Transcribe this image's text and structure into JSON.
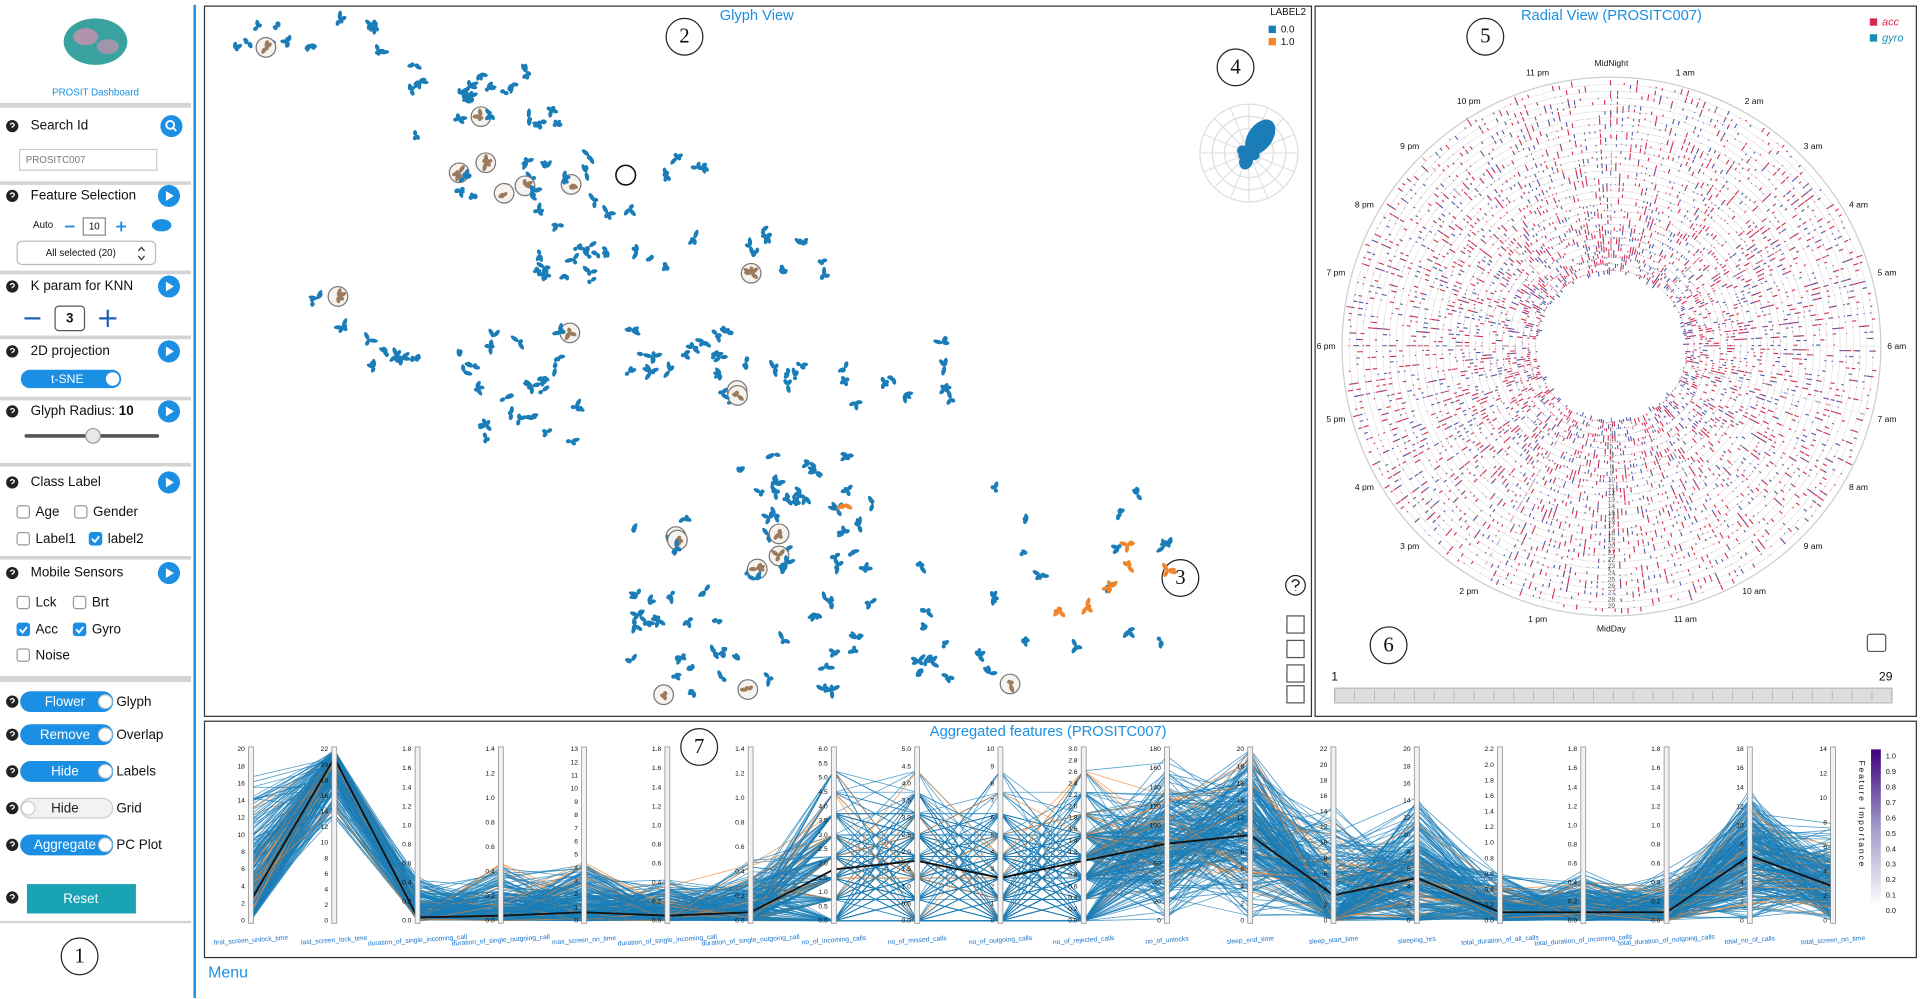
{
  "sidebar": {
    "app_title": "PROSIT Dashboard",
    "search": {
      "label": "Search Id",
      "placeholder": "PROSITC007"
    },
    "feature_selection": {
      "label": "Feature Selection",
      "mode": "Auto",
      "count": 10,
      "dropdown": "All selected (20)"
    },
    "knn": {
      "label": "K param for KNN",
      "k": 3
    },
    "projection": {
      "label": "2D projection",
      "method": "t-SNE"
    },
    "glyph_radius": {
      "label": "Glyph Radius:",
      "value": 10
    },
    "class_label": {
      "label": "Class Label",
      "options": [
        {
          "label": "Age",
          "checked": false
        },
        {
          "label": "Gender",
          "checked": false
        },
        {
          "label": "Label1",
          "checked": false
        },
        {
          "label": "label2",
          "checked": true
        }
      ]
    },
    "sensors": {
      "label": "Mobile Sensors",
      "options": [
        {
          "label": "Lck",
          "checked": false
        },
        {
          "label": "Brt",
          "checked": false
        },
        {
          "label": "Acc",
          "checked": true
        },
        {
          "label": "Gyro",
          "checked": true
        },
        {
          "label": "Noise",
          "checked": false
        }
      ]
    },
    "toggles": [
      {
        "button": "Flower",
        "label": "Glyph",
        "on": true
      },
      {
        "button": "Remove",
        "label": "Overlap",
        "on": true
      },
      {
        "button": "Hide",
        "label": "Labels",
        "on": true
      },
      {
        "button": "Hide",
        "label": "Grid",
        "on": false
      },
      {
        "button": "Aggregate",
        "label": "PC Plot",
        "on": true
      }
    ],
    "reset": "Reset"
  },
  "callouts": [
    1,
    2,
    3,
    4,
    5,
    6,
    7
  ],
  "glyph_view": {
    "title": "Glyph View",
    "legend": {
      "title": "LABEL2",
      "items": [
        {
          "label": "0.0",
          "color": "#1a7db8"
        },
        {
          "label": "1.0",
          "color": "#f0852d"
        }
      ]
    }
  },
  "radial_view": {
    "title": "Radial View (PROSITC007)",
    "legend": [
      {
        "label": "acc",
        "color": "#d62a4f"
      },
      {
        "label": "gyro",
        "color": "#1a8fb5"
      }
    ],
    "hours": [
      "MidNight",
      "1 am",
      "2 am",
      "3 am",
      "4 am",
      "5 am",
      "6 am",
      "7 am",
      "8 am",
      "9 am",
      "10 am",
      "11 am",
      "MidDay",
      "1 pm",
      "2 pm",
      "3 pm",
      "4 pm",
      "5 pm",
      "6 pm",
      "7 pm",
      "8 pm",
      "9 pm",
      "10 pm",
      "11 pm"
    ],
    "day_rings": [
      1,
      2,
      3,
      4,
      5,
      6,
      7,
      8,
      9,
      10,
      11,
      12,
      13,
      14,
      15,
      16,
      17,
      18,
      19,
      20,
      21,
      22,
      23,
      24,
      25,
      26,
      27,
      28,
      29
    ],
    "slider": {
      "min": 1,
      "max": 29
    }
  },
  "pc_plot": {
    "title": "Aggregated features (PROSITC007)",
    "axes": [
      {
        "name": "first_screen_unlock_time",
        "ticks": [
          "0",
          "2",
          "4",
          "6",
          "8",
          "10",
          "12",
          "14",
          "16",
          "18",
          "20"
        ]
      },
      {
        "name": "last_screen_lock_time",
        "ticks": [
          "0",
          "2",
          "4",
          "6",
          "8",
          "10",
          "12",
          "14",
          "16",
          "18",
          "20",
          "22"
        ]
      },
      {
        "name": "duration_of_single_incoming_call",
        "ticks": [
          "0.0",
          "0.2",
          "0.4",
          "0.6",
          "0.8",
          "1.0",
          "1.2",
          "1.4",
          "1.6",
          "1.8"
        ]
      },
      {
        "name": "duration_of_single_outgoing_call",
        "ticks": [
          "0.0",
          "0.2",
          "0.4",
          "0.6",
          "0.8",
          "1.0",
          "1.2",
          "1.4"
        ]
      },
      {
        "name": "max_screen_on_time",
        "ticks": [
          "0",
          "1",
          "2",
          "3",
          "4",
          "5",
          "6",
          "7",
          "8",
          "9",
          "10",
          "11",
          "12",
          "13"
        ]
      },
      {
        "name": "duration_of_single_incoming_call",
        "ticks": [
          "0.0",
          "0.2",
          "0.4",
          "0.6",
          "0.8",
          "1.0",
          "1.2",
          "1.4",
          "1.6",
          "1.8"
        ]
      },
      {
        "name": "duration_of_single_outgoing_call",
        "ticks": [
          "0.0",
          "0.2",
          "0.4",
          "0.6",
          "0.8",
          "1.0",
          "1.2",
          "1.4"
        ]
      },
      {
        "name": "no_of_incoming_calls",
        "ticks": [
          "0.0",
          "0.5",
          "1.0",
          "1.5",
          "2.0",
          "2.5",
          "3.0",
          "3.5",
          "4.0",
          "4.5",
          "5.0",
          "5.5",
          "6.0"
        ]
      },
      {
        "name": "no_of_missed_calls",
        "ticks": [
          "0.0",
          "0.5",
          "1.0",
          "1.5",
          "2.0",
          "2.5",
          "3.0",
          "3.5",
          "4.0",
          "4.5",
          "5.0"
        ]
      },
      {
        "name": "no_of_outgoing_calls",
        "ticks": [
          "0",
          "1",
          "2",
          "3",
          "4",
          "5",
          "6",
          "7",
          "8",
          "9",
          "10"
        ]
      },
      {
        "name": "no_of_rejected_calls",
        "ticks": [
          "0.0",
          "0.2",
          "0.4",
          "0.6",
          "0.8",
          "1.0",
          "1.2",
          "1.4",
          "1.6",
          "1.8",
          "2.0",
          "2.2",
          "2.4",
          "2.6",
          "2.8",
          "3.0"
        ]
      },
      {
        "name": "no_of_unlocks",
        "ticks": [
          "0",
          "20",
          "40",
          "60",
          "80",
          "100",
          "120",
          "140",
          "160",
          "180"
        ]
      },
      {
        "name": "sleep_end_time",
        "ticks": [
          "0",
          "2",
          "4",
          "6",
          "8",
          "10",
          "12",
          "14",
          "16",
          "18",
          "20"
        ]
      },
      {
        "name": "sleep_start_time",
        "ticks": [
          "0",
          "2",
          "4",
          "6",
          "8",
          "10",
          "12",
          "14",
          "16",
          "18",
          "20",
          "22"
        ]
      },
      {
        "name": "sleeping_hrs",
        "ticks": [
          "0",
          "2",
          "4",
          "6",
          "8",
          "10",
          "12",
          "14",
          "16",
          "18",
          "20"
        ]
      },
      {
        "name": "total_duration_of_all_calls",
        "ticks": [
          "0.0",
          "0.2",
          "0.4",
          "0.6",
          "0.8",
          "1.0",
          "1.2",
          "1.4",
          "1.6",
          "1.8",
          "2.0",
          "2.2"
        ]
      },
      {
        "name": "total_duration_of_incoming_calls",
        "ticks": [
          "0.0",
          "0.2",
          "0.4",
          "0.6",
          "0.8",
          "1.0",
          "1.2",
          "1.4",
          "1.6",
          "1.8"
        ]
      },
      {
        "name": "total_duration_of_outgoing_calls",
        "ticks": [
          "0.0",
          "0.2",
          "0.4",
          "0.6",
          "0.8",
          "1.0",
          "1.2",
          "1.4",
          "1.6",
          "1.8"
        ]
      },
      {
        "name": "total_no_of_calls",
        "ticks": [
          "0",
          "2",
          "4",
          "6",
          "8",
          "10",
          "12",
          "14",
          "16",
          "18"
        ]
      },
      {
        "name": "total_screen_on_time",
        "ticks": [
          "0",
          "2",
          "4",
          "6",
          "8",
          "10",
          "12",
          "14"
        ]
      }
    ],
    "colorbar": {
      "title": "Feature Importance",
      "ticks": [
        "0.0",
        "0.1",
        "0.2",
        "0.3",
        "0.4",
        "0.5",
        "0.6",
        "0.7",
        "0.8",
        "0.9",
        "1.0"
      ]
    }
  },
  "menu": "Menu"
}
